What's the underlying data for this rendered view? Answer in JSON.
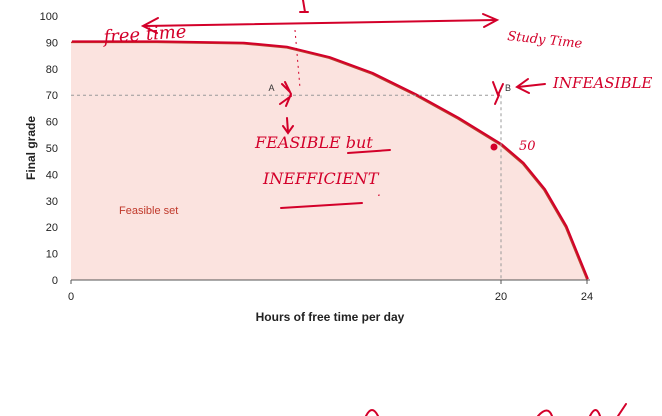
{
  "chart_data": {
    "type": "area",
    "title": "",
    "xlabel": "Hours of free time per day",
    "ylabel": "Final grade",
    "xlim": [
      0,
      24
    ],
    "ylim": [
      0,
      100
    ],
    "x_ticks": [
      0,
      20,
      24
    ],
    "y_ticks": [
      0,
      10,
      20,
      30,
      40,
      50,
      60,
      70,
      80,
      90,
      100
    ],
    "grid": false,
    "frontier": {
      "x": [
        0,
        4,
        8,
        10,
        12,
        14,
        16,
        18,
        20,
        21,
        22,
        23,
        24
      ],
      "y": [
        90,
        90,
        89.5,
        88,
        84,
        78,
        70,
        61,
        51,
        44,
        34,
        20,
        0
      ]
    },
    "region_label": "Feasible set",
    "points": [
      {
        "label": "A",
        "x": 9,
        "y": 70
      },
      {
        "label": "B",
        "x": 20,
        "y": 70
      }
    ],
    "fill_color": "#fbe3df",
    "line_color": "#c0392b"
  },
  "annotations": {
    "free_time": "free time",
    "study_time": "Study Time",
    "infeasible": "INFEASIBLE",
    "feasible_but": "FEASIBLE but",
    "inefficient": "INEFFICIENT",
    "value_50": "50",
    "ink_color": "#d3002a"
  }
}
